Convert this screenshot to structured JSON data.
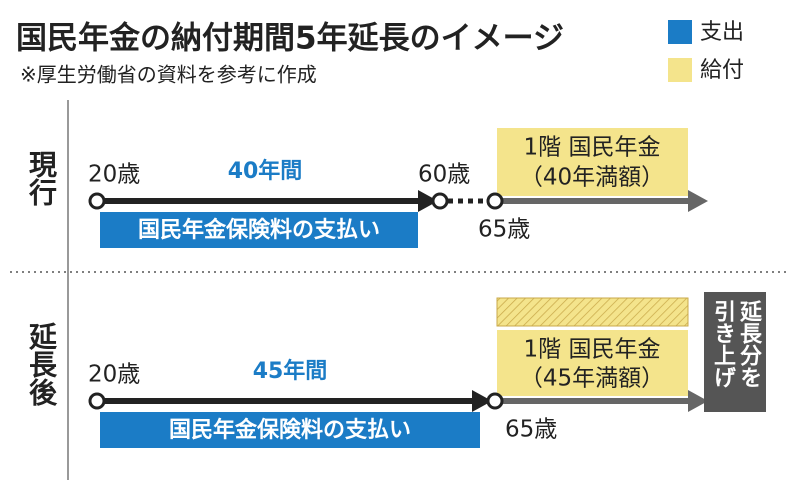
{
  "header": {
    "title": "国民年金の納付期間5年延長のイメージ",
    "note": "※厚生労働省の資料を参考に作成"
  },
  "legend": [
    {
      "label": "支出",
      "color": "#1b7cc6"
    },
    {
      "label": "給付",
      "color": "#f4e48c"
    }
  ],
  "sections": [
    {
      "label": "現行",
      "start_age": "20歳",
      "period": "40年間",
      "end_age": "60歳",
      "benefit_age": "65歳",
      "payment": "国民年金保険料の支払い",
      "benefit": {
        "line1": "1階 国民年金",
        "line2": "（40年満額）"
      }
    },
    {
      "label": "延長後",
      "start_age": "20歳",
      "period": "45年間",
      "benefit_age": "65歳",
      "payment": "国民年金保険料の支払い",
      "benefit": {
        "line1": "1階 国民年金",
        "line2": "（45年満額）"
      },
      "increase": [
        "延長分を",
        "引き上げ"
      ]
    }
  ]
}
